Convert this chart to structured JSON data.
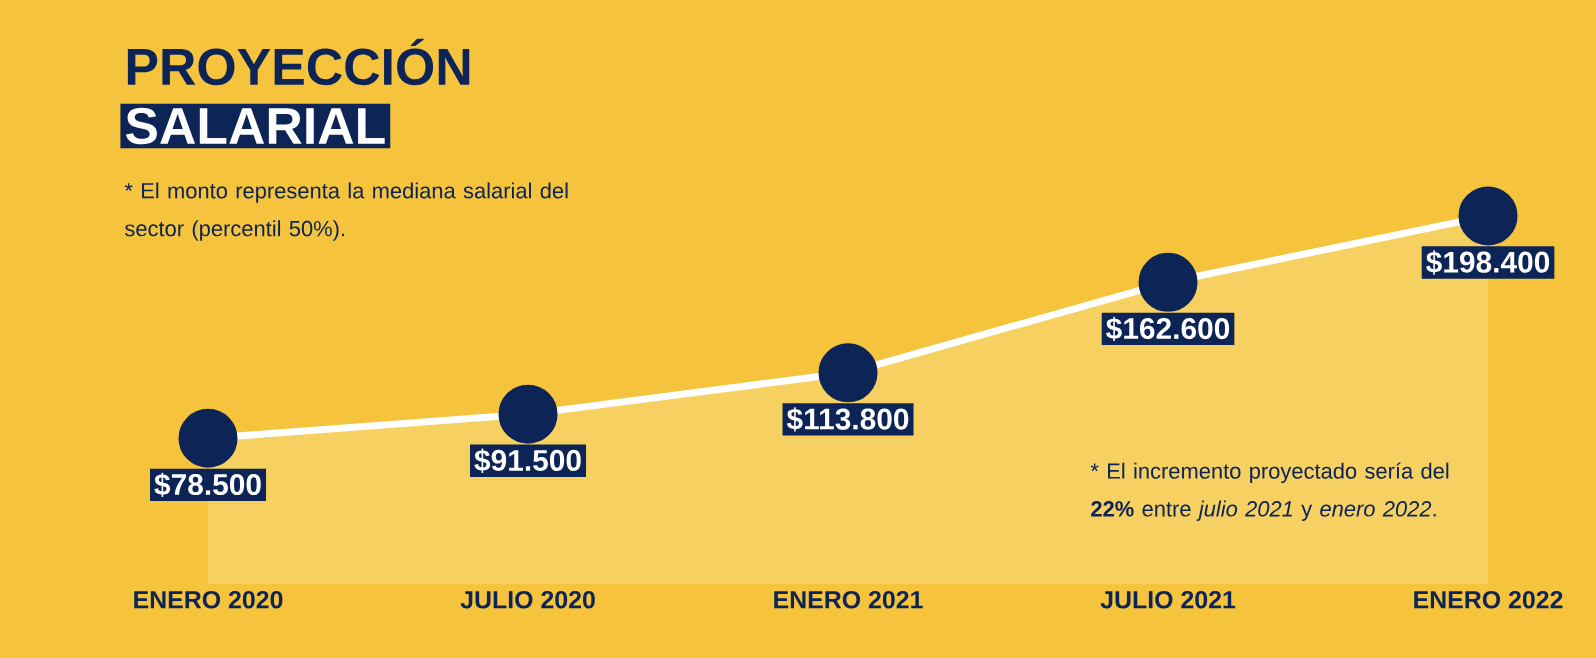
{
  "chart_data": {
    "type": "area",
    "title": "PROYECCIÓN",
    "subtitle": "SALARIAL",
    "categories": [
      "ENERO 2020",
      "JULIO 2020",
      "ENERO 2021",
      "JULIO 2021",
      "ENERO 2022"
    ],
    "values": [
      78500,
      91500,
      113800,
      162600,
      198400
    ],
    "value_labels": [
      "$78.500",
      "$91.500",
      "$113.800",
      "$162.600",
      "$198.400"
    ],
    "color": "#f6d061",
    "marker": "circle",
    "annotations": [
      "* El monto representa la mediana salarial del sector (percentil 50%).",
      "* El incremento proyectado sería del **22%** entre *julio 2021* y *enero 2022*."
    ]
  }
}
